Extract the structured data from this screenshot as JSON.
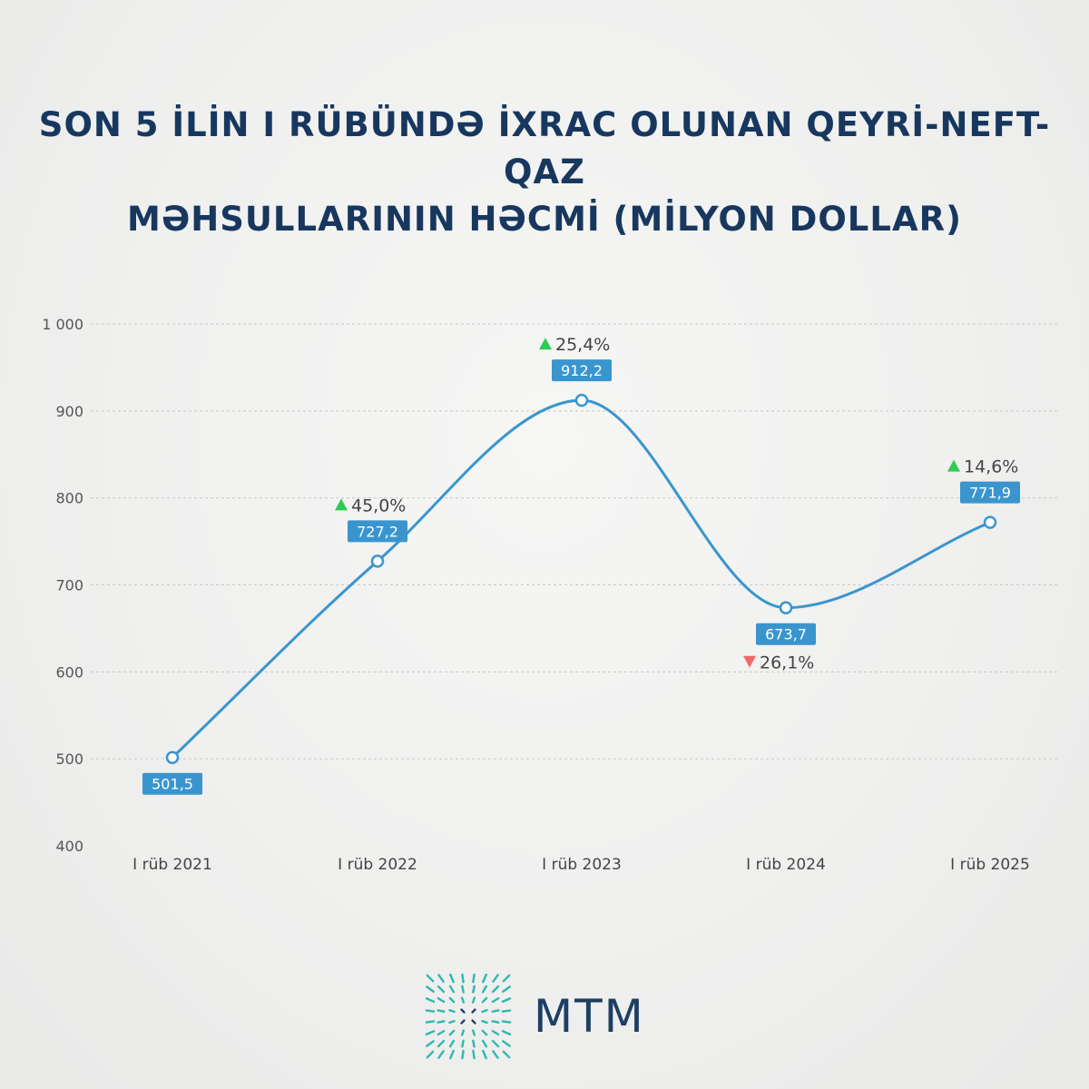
{
  "header": {
    "title_line1": "SON 5 İLİN I RÜBÜNDƏ İXRAC OLUNAN QEYRİ-NEFT-QAZ",
    "title_line2": "MƏHSULLARININ HƏCMİ (MİLYON DOLLAR)"
  },
  "chart_data": {
    "type": "line",
    "title": "SON 5 İLİN I RÜBÜNDƏ İXRAC OLUNAN QEYRİ-NEFT-QAZ MƏHSULLARININ HƏCMİ (MİLYON DOLLAR)",
    "categories": [
      "I rüb 2021",
      "I rüb 2022",
      "I rüb 2023",
      "I rüb 2024",
      "I rüb 2025"
    ],
    "values": [
      501.5,
      727.2,
      912.2,
      673.7,
      771.9
    ],
    "value_labels": [
      "501,5",
      "727,2",
      "912,2",
      "673,7",
      "771,9"
    ],
    "changes": [
      null,
      {
        "direction": "up",
        "label": "45,0%"
      },
      {
        "direction": "up",
        "label": "25,4%"
      },
      {
        "direction": "down",
        "label": "26,1%"
      },
      {
        "direction": "up",
        "label": "14,6%"
      }
    ],
    "y_ticks": [
      400,
      500,
      600,
      700,
      800,
      900,
      1000
    ],
    "y_tick_labels": [
      "400",
      "500",
      "600",
      "700",
      "800",
      "900",
      "1 000"
    ],
    "ylim": [
      400,
      1000
    ],
    "grid": true,
    "colors": {
      "line": "#3a95cf",
      "badge": "#3a95cf",
      "up": "#2ecc52",
      "down": "#f06a6a",
      "title": "#17375e"
    }
  },
  "footer": {
    "logo_text": "MTM",
    "logo_icon": "mtm-logo-icon",
    "logo_color": "#1d3f63",
    "logo_accent": "#2fb8b0"
  }
}
